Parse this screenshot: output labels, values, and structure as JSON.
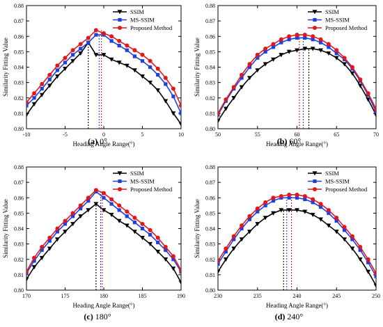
{
  "chart_data": [
    {
      "type": "line",
      "panel_label": "(a)",
      "panel_angle": "0°",
      "xlabel": "Heading Angle Range(°)",
      "ylabel": "Similarity Fitting Value",
      "xlim": [
        -10,
        10
      ],
      "ylim": [
        0.8,
        0.88
      ],
      "xticks": [
        -10,
        -5,
        0,
        5,
        10
      ],
      "yticks": [
        0.8,
        0.81,
        0.82,
        0.83,
        0.84,
        0.85,
        0.86,
        0.87,
        0.88
      ],
      "legend_position": "top-right",
      "x": [
        -10,
        -9,
        -8,
        -7,
        -6,
        -5,
        -4,
        -3,
        -2,
        -1,
        0,
        1,
        2,
        3,
        4,
        5,
        6,
        7,
        8,
        9,
        10
      ],
      "series": [
        {
          "name": "SSIM",
          "color": "#000000",
          "marker": "triangle-down",
          "peak_x": -2.0,
          "values": [
            0.809,
            0.816,
            0.822,
            0.828,
            0.834,
            0.839,
            0.844,
            0.849,
            0.856,
            0.848,
            0.848,
            0.845,
            0.843,
            0.841,
            0.838,
            0.834,
            0.83,
            0.825,
            0.818,
            0.81,
            0.803
          ]
        },
        {
          "name": "MS-SSIM",
          "color": "#1f3fe0",
          "marker": "square",
          "peak_x": -0.6,
          "values": [
            0.815,
            0.82,
            0.826,
            0.832,
            0.838,
            0.843,
            0.848,
            0.852,
            0.856,
            0.861,
            0.861,
            0.857,
            0.854,
            0.851,
            0.847,
            0.844,
            0.84,
            0.835,
            0.829,
            0.821,
            0.81
          ]
        },
        {
          "name": "Proposed Method",
          "color": "#e0181b",
          "marker": "circle",
          "peak_x": -0.3,
          "values": [
            0.817,
            0.823,
            0.829,
            0.835,
            0.841,
            0.846,
            0.851,
            0.855,
            0.859,
            0.864,
            0.862,
            0.86,
            0.857,
            0.854,
            0.851,
            0.848,
            0.844,
            0.839,
            0.833,
            0.826,
            0.815
          ]
        }
      ]
    },
    {
      "type": "line",
      "panel_label": "(b)",
      "panel_angle": "60°",
      "xlabel": "Heading Angle Range(°)",
      "ylabel": "Similarity Fitting Value",
      "xlim": [
        50,
        70
      ],
      "ylim": [
        0.8,
        0.88
      ],
      "xticks": [
        50,
        55,
        60,
        65,
        70
      ],
      "yticks": [
        0.8,
        0.81,
        0.82,
        0.83,
        0.84,
        0.85,
        0.86,
        0.87,
        0.88
      ],
      "legend_position": "top-right",
      "x": [
        50,
        51,
        52,
        53,
        54,
        55,
        56,
        57,
        58,
        59,
        60,
        61,
        62,
        63,
        64,
        65,
        66,
        67,
        68,
        69,
        70
      ],
      "series": [
        {
          "name": "SSIM",
          "color": "#000000",
          "marker": "triangle-down",
          "peak_x": 61.5,
          "values": [
            0.805,
            0.813,
            0.82,
            0.827,
            0.833,
            0.838,
            0.842,
            0.845,
            0.848,
            0.85,
            0.851,
            0.852,
            0.852,
            0.851,
            0.849,
            0.846,
            0.842,
            0.836,
            0.828,
            0.819,
            0.809
          ]
        },
        {
          "name": "MS-SSIM",
          "color": "#1f3fe0",
          "marker": "square",
          "peak_x": 60.8,
          "values": [
            0.809,
            0.818,
            0.826,
            0.833,
            0.84,
            0.846,
            0.85,
            0.853,
            0.856,
            0.858,
            0.859,
            0.859,
            0.858,
            0.856,
            0.853,
            0.849,
            0.845,
            0.839,
            0.831,
            0.822,
            0.811
          ]
        },
        {
          "name": "Proposed Method",
          "color": "#e0181b",
          "marker": "circle",
          "peak_x": 60.3,
          "values": [
            0.81,
            0.819,
            0.827,
            0.835,
            0.842,
            0.848,
            0.852,
            0.855,
            0.858,
            0.86,
            0.861,
            0.861,
            0.86,
            0.858,
            0.855,
            0.851,
            0.846,
            0.84,
            0.832,
            0.823,
            0.813
          ]
        }
      ]
    },
    {
      "type": "line",
      "panel_label": "(c)",
      "panel_angle": "180°",
      "xlabel": "Heading Angle Range(°)",
      "ylabel": "Similarity Fitting Value",
      "xlim": [
        170,
        190
      ],
      "ylim": [
        0.8,
        0.88
      ],
      "xticks": [
        170,
        175,
        180,
        185,
        190
      ],
      "yticks": [
        0.8,
        0.81,
        0.82,
        0.83,
        0.84,
        0.85,
        0.86,
        0.87,
        0.88
      ],
      "legend_position": "top-right",
      "x": [
        170,
        171,
        172,
        173,
        174,
        175,
        176,
        177,
        178,
        179,
        180,
        181,
        182,
        183,
        184,
        185,
        186,
        187,
        188,
        189,
        190
      ],
      "series": [
        {
          "name": "SSIM",
          "color": "#000000",
          "marker": "triangle-down",
          "peak_x": 179.0,
          "values": [
            0.807,
            0.815,
            0.821,
            0.827,
            0.833,
            0.838,
            0.843,
            0.848,
            0.852,
            0.856,
            0.852,
            0.849,
            0.845,
            0.842,
            0.838,
            0.834,
            0.83,
            0.825,
            0.82,
            0.814,
            0.805
          ]
        },
        {
          "name": "MS-SSIM",
          "color": "#1f3fe0",
          "marker": "square",
          "peak_x": 179.6,
          "values": [
            0.811,
            0.819,
            0.826,
            0.832,
            0.838,
            0.843,
            0.848,
            0.853,
            0.858,
            0.864,
            0.86,
            0.856,
            0.852,
            0.848,
            0.844,
            0.84,
            0.836,
            0.831,
            0.826,
            0.82,
            0.812
          ]
        },
        {
          "name": "Proposed Method",
          "color": "#e0181b",
          "marker": "circle",
          "peak_x": 179.8,
          "values": [
            0.812,
            0.821,
            0.828,
            0.834,
            0.84,
            0.845,
            0.85,
            0.855,
            0.86,
            0.865,
            0.863,
            0.859,
            0.855,
            0.851,
            0.847,
            0.843,
            0.839,
            0.834,
            0.828,
            0.822,
            0.813
          ]
        }
      ]
    },
    {
      "type": "line",
      "panel_label": "(d)",
      "panel_angle": "240°",
      "xlabel": "Heading Angle Range(°)",
      "ylabel": "Similarity Fitting Value",
      "xlim": [
        230,
        250
      ],
      "ylim": [
        0.8,
        0.88
      ],
      "xticks": [
        230,
        235,
        240,
        245,
        250
      ],
      "yticks": [
        0.8,
        0.81,
        0.82,
        0.83,
        0.84,
        0.85,
        0.86,
        0.87,
        0.88
      ],
      "legend_position": "top-right",
      "x": [
        230,
        231,
        232,
        233,
        234,
        235,
        236,
        237,
        238,
        239,
        240,
        241,
        242,
        243,
        244,
        245,
        246,
        247,
        248,
        249,
        250
      ],
      "series": [
        {
          "name": "SSIM",
          "color": "#000000",
          "marker": "triangle-down",
          "peak_x": 238.3,
          "values": [
            0.812,
            0.82,
            0.827,
            0.833,
            0.838,
            0.843,
            0.847,
            0.85,
            0.852,
            0.852,
            0.852,
            0.851,
            0.849,
            0.846,
            0.842,
            0.838,
            0.833,
            0.827,
            0.82,
            0.812,
            0.803
          ]
        },
        {
          "name": "MS-SSIM",
          "color": "#1f3fe0",
          "marker": "square",
          "peak_x": 238.7,
          "values": [
            0.817,
            0.825,
            0.833,
            0.84,
            0.846,
            0.851,
            0.855,
            0.858,
            0.86,
            0.86,
            0.86,
            0.859,
            0.857,
            0.854,
            0.85,
            0.845,
            0.839,
            0.833,
            0.826,
            0.818,
            0.809
          ]
        },
        {
          "name": "Proposed Method",
          "color": "#e0181b",
          "marker": "circle",
          "peak_x": 239.3,
          "values": [
            0.819,
            0.827,
            0.835,
            0.842,
            0.848,
            0.853,
            0.857,
            0.86,
            0.861,
            0.862,
            0.862,
            0.861,
            0.859,
            0.856,
            0.852,
            0.847,
            0.841,
            0.835,
            0.828,
            0.82,
            0.811
          ]
        }
      ]
    }
  ]
}
